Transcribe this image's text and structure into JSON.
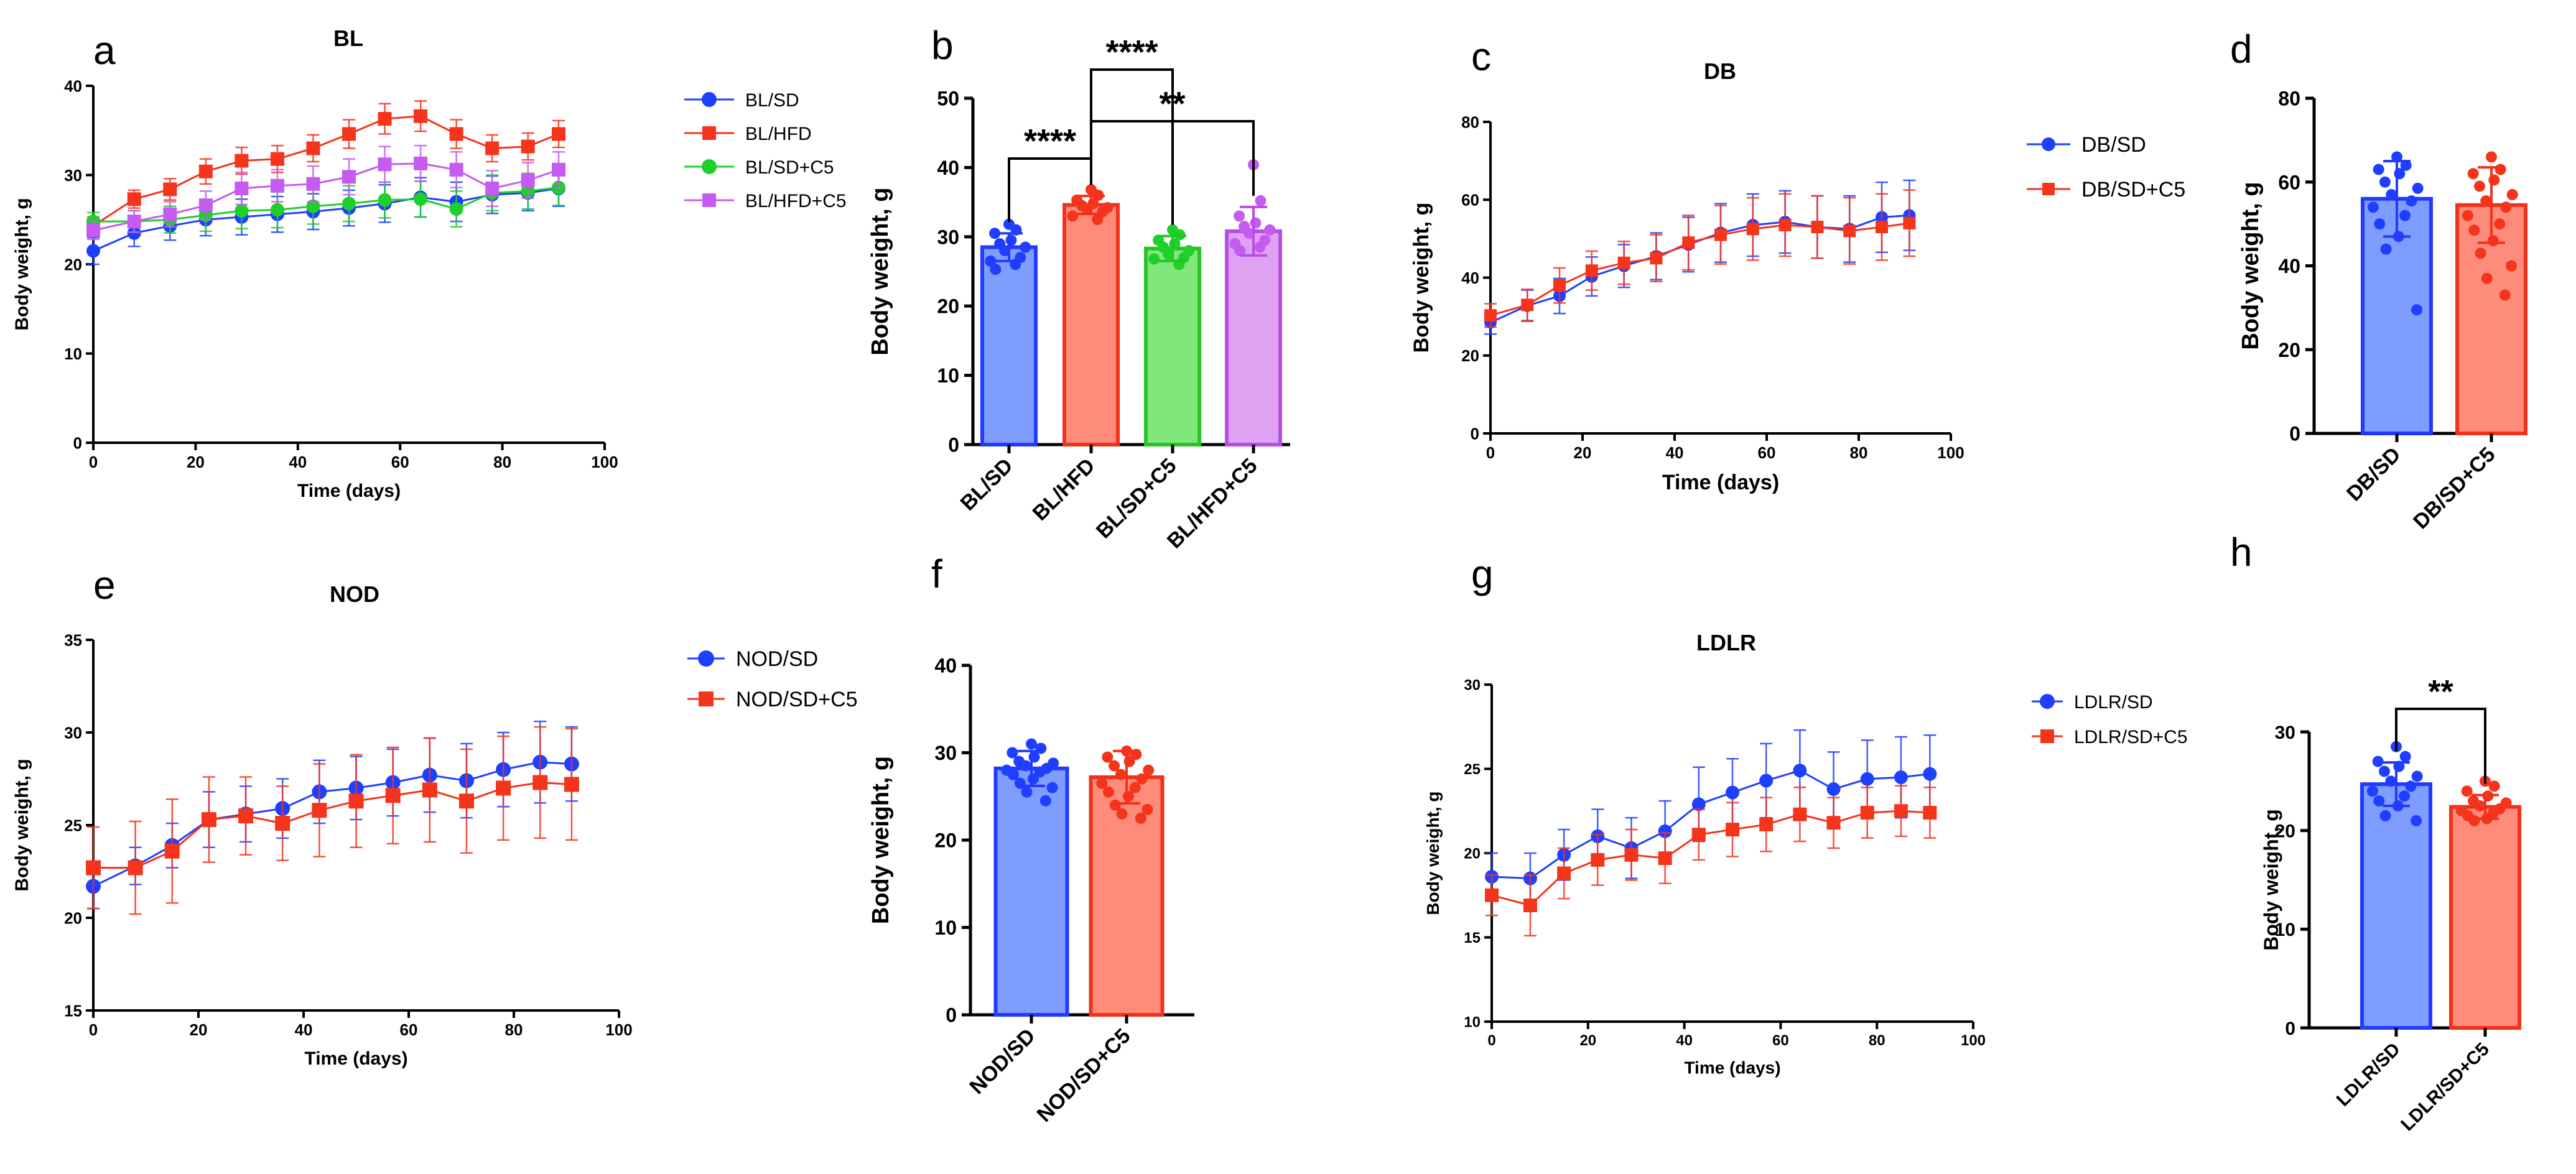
{
  "panels": {
    "a": {
      "letter": "a",
      "chart_data": {
        "type": "line",
        "title": "BL",
        "xlabel": "Time (days)",
        "ylabel": "Body weight, g",
        "xlim": [
          0,
          100
        ],
        "ylim": [
          0,
          40
        ],
        "xticks": [
          0,
          20,
          40,
          60,
          80,
          100
        ],
        "yticks": [
          0,
          10,
          20,
          30,
          40
        ],
        "x": [
          0,
          8,
          15,
          22,
          29,
          36,
          43,
          50,
          57,
          64,
          71,
          78,
          85,
          91
        ],
        "series": [
          {
            "name": "BL/SD",
            "color": "#1f3fff",
            "marker": "circle",
            "values": [
              21.5,
              23.5,
              24.3,
              25.0,
              25.3,
              25.6,
              25.9,
              26.3,
              26.8,
              27.5,
              27.0,
              27.8,
              28.0,
              28.5
            ],
            "errors": [
              1.5,
              1.5,
              1.6,
              1.8,
              2.0,
              2.0,
              2.0,
              2.0,
              2.1,
              2.2,
              2.2,
              2.1,
              2.0,
              2.0
            ]
          },
          {
            "name": "BL/HFD",
            "color": "#f4341b",
            "marker": "square",
            "values": [
              24.3,
              27.3,
              28.4,
              30.4,
              31.6,
              31.8,
              33.0,
              34.6,
              36.3,
              36.6,
              34.6,
              33.0,
              33.2,
              34.6
            ],
            "errors": [
              1.0,
              1.0,
              1.2,
              1.4,
              1.5,
              1.5,
              1.5,
              1.6,
              1.7,
              1.7,
              1.6,
              1.5,
              1.5,
              1.5
            ]
          },
          {
            "name": "BL/SD+C5",
            "color": "#1fcf2a",
            "marker": "circle",
            "values": [
              24.8,
              24.8,
              25.0,
              25.5,
              26.0,
              26.1,
              26.5,
              26.8,
              27.2,
              27.3,
              26.2,
              28.0,
              28.2,
              28.6
            ],
            "errors": [
              1.0,
              1.2,
              1.5,
              1.8,
              2.0,
              2.0,
              2.0,
              2.0,
              2.0,
              2.0,
              2.0,
              2.0,
              2.0,
              2.0
            ]
          },
          {
            "name": "BL/HFD+C5",
            "color": "#c55bf0",
            "marker": "square",
            "values": [
              23.8,
              24.8,
              25.6,
              26.6,
              28.5,
              28.8,
              29.0,
              29.8,
              31.2,
              31.3,
              30.6,
              28.5,
              29.4,
              30.6
            ],
            "errors": [
              1.0,
              1.2,
              1.4,
              1.6,
              1.8,
              1.8,
              2.0,
              2.0,
              2.0,
              2.0,
              2.0,
              2.0,
              2.0,
              2.0
            ]
          }
        ]
      }
    },
    "b": {
      "letter": "b",
      "chart_data": {
        "type": "bar",
        "title": "",
        "xlabel": "",
        "ylabel": "Body weight, g",
        "ylim": [
          0,
          50
        ],
        "yticks": [
          0,
          10,
          20,
          30,
          40,
          50
        ],
        "categories": [
          "BL/SD",
          "BL/HFD",
          "BL/SD+C5",
          "BL/HFD+C5"
        ],
        "values": [
          28.5,
          34.6,
          28.3,
          30.8
        ],
        "errors": [
          2.0,
          1.3,
          1.8,
          3.5
        ],
        "colors": [
          {
            "fill": "#7f9cff",
            "edge": "#2339ff",
            "point": "#1f3fff"
          },
          {
            "fill": "#ff8c7a",
            "edge": "#f2311b",
            "point": "#f4341b"
          },
          {
            "fill": "#80e87a",
            "edge": "#26c424",
            "point": "#1fcf2a"
          },
          {
            "fill": "#dfa2f2",
            "edge": "#b74ce8",
            "point": "#c55bf0"
          }
        ],
        "points": [
          [
            31.8,
            31.0,
            30.5,
            29.5,
            29.0,
            28.5,
            28.0,
            27.0,
            26.5,
            26.0,
            25.3
          ],
          [
            36.8,
            36.0,
            35.3,
            34.8,
            34.5,
            34.2,
            34.0,
            33.6,
            33.0,
            32.5
          ],
          [
            31.0,
            30.3,
            29.5,
            29.0,
            28.5,
            28.0,
            27.5,
            27.0,
            26.8,
            26.0
          ],
          [
            40.4,
            35.2,
            33.0,
            32.0,
            31.5,
            31.0,
            30.5,
            29.5,
            29.0,
            28.5,
            28.0
          ]
        ],
        "significance": [
          {
            "from": 0,
            "to": 1,
            "label": "****"
          },
          {
            "from": 1,
            "to": 2,
            "label": "****"
          },
          {
            "from": 1,
            "to": 3,
            "label": "**"
          }
        ]
      }
    },
    "c": {
      "letter": "c",
      "chart_data": {
        "type": "line",
        "title": "DB",
        "xlabel": "Time (days)",
        "ylabel": "Body weight, g",
        "xlim": [
          0,
          100
        ],
        "ylim": [
          0,
          80
        ],
        "xticks": [
          0,
          20,
          40,
          60,
          80,
          100
        ],
        "yticks": [
          0,
          20,
          40,
          60,
          80
        ],
        "x": [
          0,
          8,
          15,
          22,
          29,
          36,
          43,
          50,
          57,
          64,
          71,
          78,
          85,
          91
        ],
        "series": [
          {
            "name": "DB/SD",
            "color": "#1f3fff",
            "marker": "circle",
            "values": [
              28.5,
              32.8,
              35.3,
              40.3,
              43.0,
              45.5,
              48.5,
              51.5,
              53.5,
              54.3,
              53.0,
              52.5,
              55.5,
              56.0
            ],
            "errors": [
              3.0,
              4.0,
              4.5,
              5.0,
              5.5,
              6.0,
              7.0,
              7.5,
              8.0,
              8.0,
              8.0,
              8.5,
              9.0,
              9.0
            ]
          },
          {
            "name": "DB/SD+C5",
            "color": "#f4341b",
            "marker": "square",
            "values": [
              30.3,
              33.0,
              38.0,
              41.8,
              43.8,
              45.0,
              49.0,
              51.0,
              52.5,
              53.5,
              53.0,
              52.0,
              53.0,
              54.0
            ],
            "errors": [
              3.0,
              4.0,
              4.5,
              5.0,
              5.5,
              6.0,
              7.0,
              7.5,
              8.0,
              8.0,
              8.0,
              8.5,
              8.5,
              8.5
            ]
          }
        ]
      }
    },
    "d": {
      "letter": "d",
      "chart_data": {
        "type": "bar",
        "title": "",
        "xlabel": "",
        "ylabel": "Body weight, g",
        "ylim": [
          0,
          80
        ],
        "yticks": [
          0,
          20,
          40,
          60,
          80
        ],
        "categories": [
          "DB/SD",
          "DB/SD+C5"
        ],
        "values": [
          56.0,
          54.5
        ],
        "errors": [
          9.0,
          9.0
        ],
        "colors": [
          {
            "fill": "#7f9cff",
            "edge": "#2339ff",
            "point": "#1f3fff"
          },
          {
            "fill": "#ff8c7a",
            "edge": "#f2311b",
            "point": "#f4341b"
          }
        ],
        "points": [
          [
            66.0,
            64.0,
            63.0,
            62.0,
            60.0,
            58.5,
            57.0,
            55.5,
            54.0,
            52.0,
            50.0,
            47.0,
            44.0,
            29.5
          ],
          [
            66.0,
            63.0,
            62.0,
            60.5,
            59.0,
            57.0,
            55.5,
            54.0,
            52.0,
            50.0,
            48.5,
            46.0,
            43.0,
            40.0,
            37.0,
            33.0
          ]
        ],
        "significance": []
      }
    },
    "e": {
      "letter": "e",
      "chart_data": {
        "type": "line",
        "title": "NOD",
        "xlabel": "Time (days)",
        "ylabel": "Body weight, g",
        "xlim": [
          0,
          100
        ],
        "ylim": [
          15,
          35
        ],
        "xticks": [
          0,
          20,
          40,
          60,
          80,
          100
        ],
        "yticks": [
          15,
          20,
          25,
          30,
          35
        ],
        "x": [
          0,
          8,
          15,
          22,
          29,
          36,
          43,
          50,
          57,
          64,
          71,
          78,
          85,
          91
        ],
        "series": [
          {
            "name": "NOD/SD",
            "color": "#1f3fff",
            "marker": "circle",
            "values": [
              21.7,
              22.8,
              23.9,
              25.3,
              25.6,
              25.9,
              26.8,
              27.0,
              27.3,
              27.7,
              27.4,
              28.0,
              28.4,
              28.3
            ],
            "errors": [
              1.2,
              1.0,
              1.2,
              1.5,
              1.5,
              1.6,
              1.7,
              1.7,
              1.8,
              2.0,
              2.0,
              2.0,
              2.2,
              2.0
            ]
          },
          {
            "name": "NOD/SD+C5",
            "color": "#f4341b",
            "marker": "square",
            "values": [
              22.7,
              22.7,
              23.6,
              25.3,
              25.5,
              25.1,
              25.8,
              26.3,
              26.6,
              26.9,
              26.3,
              27.0,
              27.3,
              27.2
            ],
            "errors": [
              2.2,
              2.5,
              2.8,
              2.3,
              2.1,
              2.0,
              2.5,
              2.5,
              2.6,
              2.8,
              2.8,
              2.8,
              3.0,
              3.0
            ]
          }
        ]
      }
    },
    "f": {
      "letter": "f",
      "chart_data": {
        "type": "bar",
        "title": "",
        "xlabel": "",
        "ylabel": "Body weight, g",
        "ylim": [
          0,
          40
        ],
        "yticks": [
          0,
          10,
          20,
          30,
          40
        ],
        "categories": [
          "NOD/SD",
          "NOD/SD+C5"
        ],
        "values": [
          28.2,
          27.2
        ],
        "errors": [
          2.0,
          3.0
        ],
        "colors": [
          {
            "fill": "#7f9cff",
            "edge": "#2339ff",
            "point": "#1f3fff"
          },
          {
            "fill": "#ff8c7a",
            "edge": "#f2311b",
            "point": "#f4341b"
          }
        ],
        "points": [
          [
            31.0,
            30.5,
            30.0,
            29.5,
            29.0,
            28.8,
            28.5,
            28.2,
            28.0,
            27.8,
            27.5,
            27.0,
            26.5,
            26.0,
            25.5,
            24.5
          ],
          [
            30.2,
            29.8,
            29.5,
            29.0,
            28.5,
            28.0,
            27.5,
            27.0,
            26.5,
            26.0,
            25.5,
            25.0,
            24.0,
            23.5,
            23.0,
            22.5
          ]
        ],
        "significance": []
      }
    },
    "g": {
      "letter": "g",
      "chart_data": {
        "type": "line",
        "title": "LDLR",
        "xlabel": "Time (days)",
        "ylabel": "Body weight, g",
        "xlim": [
          0,
          100
        ],
        "ylim": [
          10,
          30
        ],
        "xticks": [
          0,
          20,
          40,
          60,
          80,
          100
        ],
        "yticks": [
          10,
          15,
          20,
          25,
          30
        ],
        "x": [
          0,
          8,
          15,
          22,
          29,
          36,
          43,
          50,
          57,
          64,
          71,
          78,
          85,
          91
        ],
        "series": [
          {
            "name": "LDLR/SD",
            "color": "#1f3fff",
            "marker": "circle",
            "values": [
              18.6,
              18.5,
              19.9,
              21.0,
              20.3,
              21.3,
              22.9,
              23.6,
              24.3,
              24.9,
              23.8,
              24.4,
              24.5,
              24.7
            ],
            "errors": [
              1.4,
              1.5,
              1.5,
              1.6,
              1.8,
              1.8,
              2.2,
              2.0,
              2.2,
              2.4,
              2.2,
              2.3,
              2.4,
              2.3
            ]
          },
          {
            "name": "LDLR/SD+C5",
            "color": "#f4341b",
            "marker": "square",
            "values": [
              17.5,
              16.9,
              18.8,
              19.6,
              19.9,
              19.7,
              21.1,
              21.4,
              21.7,
              22.3,
              21.8,
              22.4,
              22.5,
              22.4
            ],
            "errors": [
              1.2,
              1.8,
              1.5,
              1.5,
              1.5,
              1.5,
              1.5,
              1.6,
              1.6,
              1.6,
              1.5,
              1.5,
              1.5,
              1.5
            ]
          }
        ]
      }
    },
    "h": {
      "letter": "h",
      "chart_data": {
        "type": "bar",
        "title": "",
        "xlabel": "",
        "ylabel": "Body weight, g",
        "ylim": [
          0,
          30
        ],
        "yticks": [
          0,
          10,
          20,
          30
        ],
        "categories": [
          "LDLR/SD",
          "LDLR/SD+C5"
        ],
        "values": [
          24.7,
          22.4
        ],
        "errors": [
          2.2,
          1.2
        ],
        "colors": [
          {
            "fill": "#7f9cff",
            "edge": "#2339ff",
            "point": "#1f3fff"
          },
          {
            "fill": "#ff8c7a",
            "edge": "#f2311b",
            "point": "#f4341b"
          }
        ],
        "points": [
          [
            28.5,
            27.5,
            27.0,
            26.5,
            26.0,
            25.5,
            25.0,
            24.5,
            24.0,
            23.5,
            23.0,
            22.5,
            21.5,
            21.0
          ],
          [
            25.0,
            24.5,
            24.0,
            23.5,
            23.0,
            22.8,
            22.5,
            22.2,
            22.0,
            21.8,
            21.5,
            21.2,
            21.0
          ]
        ],
        "significance": [
          {
            "from": 0,
            "to": 1,
            "label": "**"
          }
        ]
      }
    }
  }
}
